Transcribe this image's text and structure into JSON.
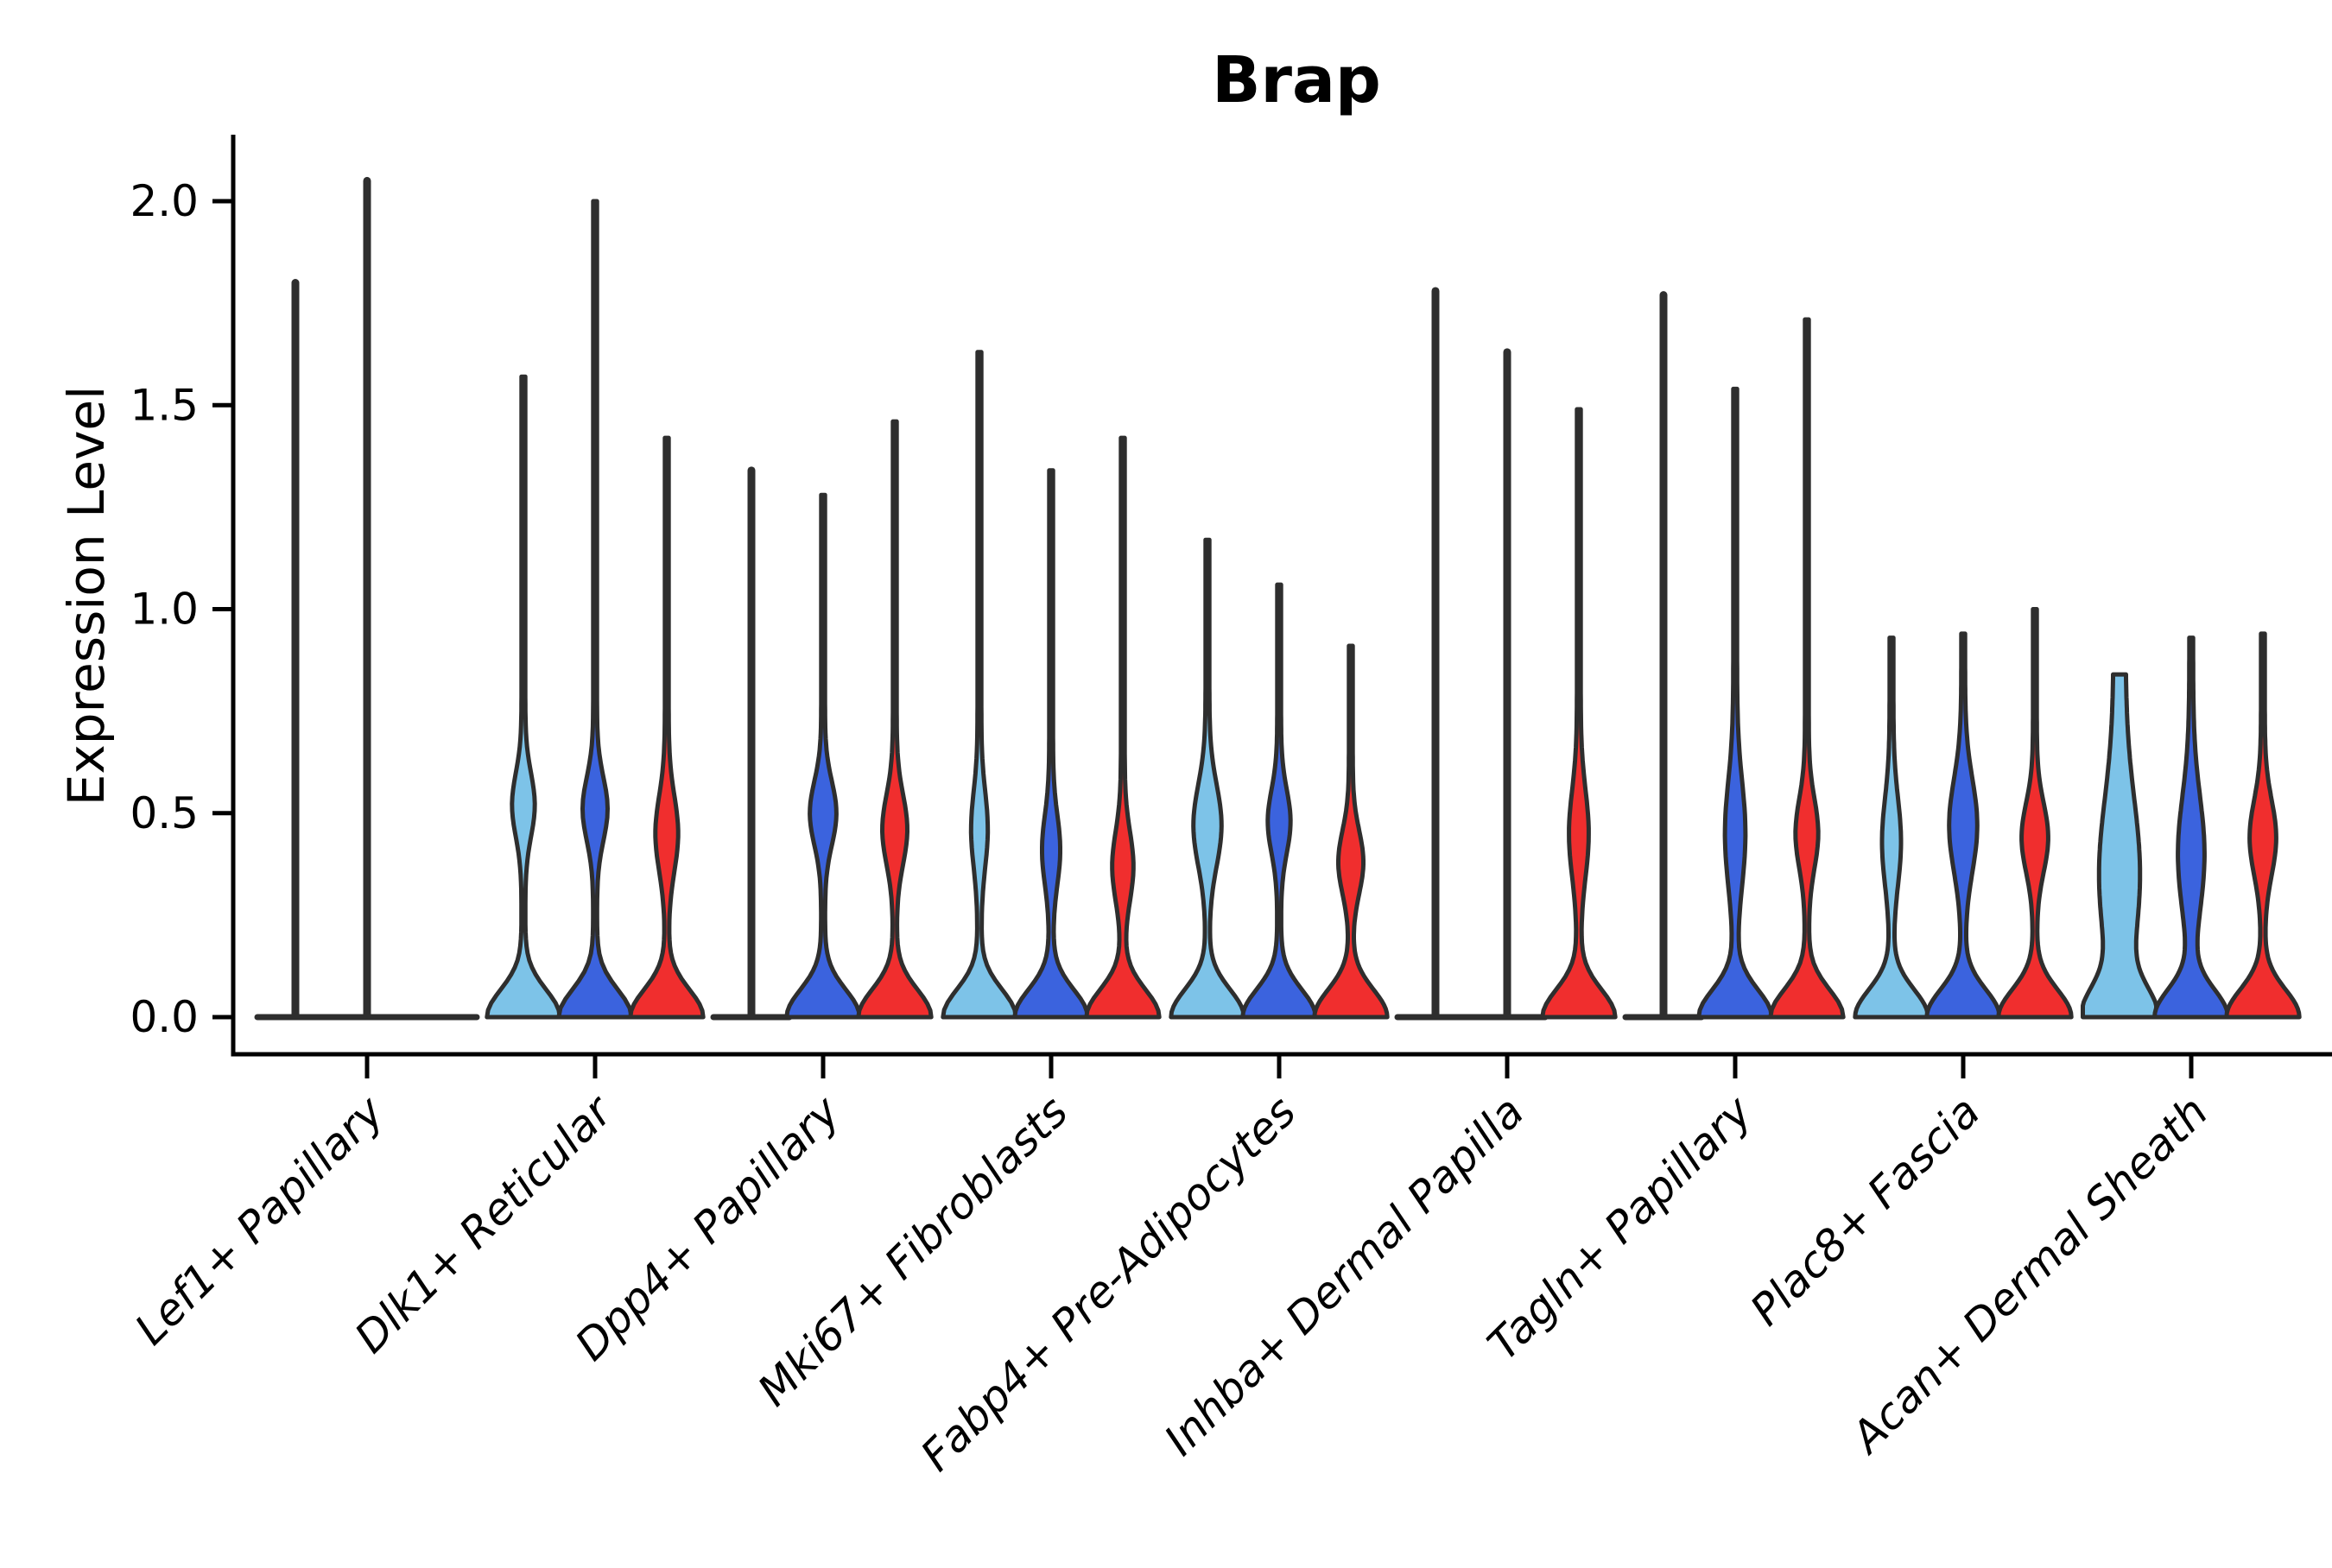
{
  "chart_data": {
    "type": "violin",
    "title": "Brap",
    "ylabel": "Expression Level",
    "ylim": [
      -0.09,
      2.16
    ],
    "grid": false,
    "legend": null,
    "x_tick_rotation_deg": 45,
    "yticks": [
      {
        "value": 0.0,
        "label": "0.0"
      },
      {
        "value": 0.5,
        "label": "0.5"
      },
      {
        "value": 1.0,
        "label": "1.0"
      },
      {
        "value": 1.5,
        "label": "1.5"
      },
      {
        "value": 2.0,
        "label": "2.0"
      }
    ],
    "colors": {
      "light_blue": "#7DC3E8",
      "royal_blue": "#3B63DE",
      "red": "#F02E2E",
      "outline": "#2E2E2E",
      "axis": "#000000"
    },
    "series_order": [
      "light_blue",
      "royal_blue",
      "red"
    ],
    "categories": [
      "Lef1+ Papillary",
      "Dlk1+ Reticular",
      "Dpp4+ Papillary",
      "Mki67+ Fibroblasts",
      "Fabp4+ Pre-Adipocytes",
      "Inhba+ Dermal Papilla",
      "Tagln+ Papillary",
      "Plac8+ Fascia",
      "Acan+ Dermal Sheath"
    ],
    "groups": [
      {
        "category": "Lef1+ Papillary",
        "violins": [
          {
            "color": "light_blue",
            "profile": "spike",
            "max": 1.8
          },
          {
            "color": "royal_blue",
            "profile": "spike",
            "max": 2.05
          },
          {
            "color": "red",
            "profile": "flat",
            "max": 0.0
          }
        ]
      },
      {
        "category": "Dlk1+ Reticular",
        "violins": [
          {
            "color": "light_blue",
            "profile": "violin",
            "max": 1.57,
            "bulge": {
              "center": 0.52,
              "spread": 0.11,
              "width_frac": 0.25
            }
          },
          {
            "color": "royal_blue",
            "profile": "violin",
            "max": 2.0,
            "bulge": {
              "center": 0.51,
              "spread": 0.11,
              "width_frac": 0.28
            }
          },
          {
            "color": "red",
            "profile": "violin",
            "max": 1.42,
            "bulge": {
              "center": 0.45,
              "spread": 0.13,
              "width_frac": 0.25
            }
          }
        ]
      },
      {
        "category": "Dpp4+ Papillary",
        "violins": [
          {
            "color": "light_blue",
            "profile": "spike",
            "max": 1.34
          },
          {
            "color": "royal_blue",
            "profile": "violin",
            "max": 1.28,
            "bulge": {
              "center": 0.5,
              "spread": 0.11,
              "width_frac": 0.3
            }
          },
          {
            "color": "red",
            "profile": "violin",
            "max": 1.46,
            "bulge": {
              "center": 0.46,
              "spread": 0.12,
              "width_frac": 0.28
            }
          }
        ]
      },
      {
        "category": "Mki67+ Fibroblasts",
        "violins": [
          {
            "color": "light_blue",
            "profile": "violin",
            "max": 1.63,
            "bulge": {
              "center": 0.46,
              "spread": 0.13,
              "width_frac": 0.17
            }
          },
          {
            "color": "royal_blue",
            "profile": "violin",
            "max": 1.34,
            "bulge": {
              "center": 0.41,
              "spread": 0.12,
              "width_frac": 0.19
            }
          },
          {
            "color": "red",
            "profile": "violin",
            "max": 1.42,
            "bulge": {
              "center": 0.37,
              "spread": 0.12,
              "width_frac": 0.23
            }
          }
        ]
      },
      {
        "category": "Fabp4+ Pre-Adipocytes",
        "violins": [
          {
            "color": "light_blue",
            "profile": "violin",
            "max": 1.17,
            "bulge": {
              "center": 0.47,
              "spread": 0.14,
              "width_frac": 0.32
            }
          },
          {
            "color": "royal_blue",
            "profile": "violin",
            "max": 1.06,
            "bulge": {
              "center": 0.48,
              "spread": 0.11,
              "width_frac": 0.25
            }
          },
          {
            "color": "red",
            "profile": "violin",
            "max": 0.91,
            "bulge": {
              "center": 0.38,
              "spread": 0.11,
              "width_frac": 0.28
            }
          }
        ]
      },
      {
        "category": "Inhba+ Dermal Papilla",
        "violins": [
          {
            "color": "light_blue",
            "profile": "spike",
            "max": 1.78
          },
          {
            "color": "royal_blue",
            "profile": "spike",
            "max": 1.63
          },
          {
            "color": "red",
            "profile": "violin",
            "max": 1.49,
            "bulge": {
              "center": 0.45,
              "spread": 0.15,
              "width_frac": 0.21
            }
          }
        ]
      },
      {
        "category": "Tagln+ Papillary",
        "violins": [
          {
            "color": "light_blue",
            "profile": "spike",
            "max": 1.77
          },
          {
            "color": "royal_blue",
            "profile": "violin",
            "max": 1.54,
            "bulge": {
              "center": 0.45,
              "spread": 0.18,
              "width_frac": 0.22
            }
          },
          {
            "color": "red",
            "profile": "violin",
            "max": 1.71,
            "bulge": {
              "center": 0.45,
              "spread": 0.12,
              "width_frac": 0.25
            }
          }
        ]
      },
      {
        "category": "Plac8+ Fascia",
        "violins": [
          {
            "color": "light_blue",
            "profile": "violin",
            "max": 0.93,
            "bulge": {
              "center": 0.43,
              "spread": 0.15,
              "width_frac": 0.2
            }
          },
          {
            "color": "royal_blue",
            "profile": "violin",
            "max": 0.94,
            "bulge": {
              "center": 0.47,
              "spread": 0.16,
              "width_frac": 0.32
            }
          },
          {
            "color": "red",
            "profile": "violin",
            "max": 1.0,
            "bulge": {
              "center": 0.44,
              "spread": 0.12,
              "width_frac": 0.3
            }
          }
        ]
      },
      {
        "category": "Acan+ Dermal Sheath",
        "violins": [
          {
            "color": "light_blue",
            "profile": "column",
            "max": 0.84,
            "cap": "blunt",
            "bulge": {
              "center": 0.35,
              "spread": 0.26,
              "width_frac": 0.38
            }
          },
          {
            "color": "royal_blue",
            "profile": "violin",
            "max": 0.93,
            "bulge": {
              "center": 0.4,
              "spread": 0.2,
              "width_frac": 0.3
            }
          },
          {
            "color": "red",
            "profile": "violin",
            "max": 0.94,
            "bulge": {
              "center": 0.44,
              "spread": 0.13,
              "width_frac": 0.3
            }
          }
        ]
      }
    ]
  }
}
